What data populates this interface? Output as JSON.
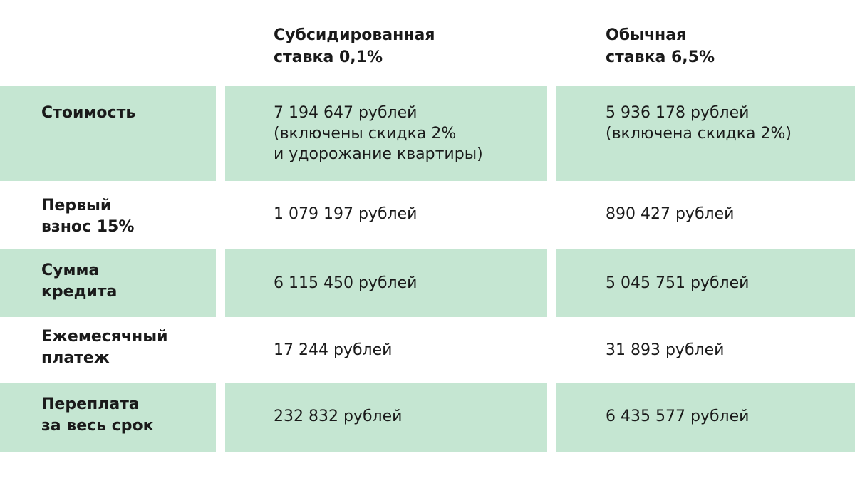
{
  "header": {
    "col1": "Субсидированная\nставка 0,1%",
    "col2": "Обычная\nставка 6,5%"
  },
  "rows": [
    {
      "label": "Стоимость",
      "subsidized": "7 194 647 рублей\n(включены скидка 2%\nи удорожание квартиры)",
      "regular": "5 936 178 рублей\n(включена скидка 2%)"
    },
    {
      "label": "Первый\nвзнос 15%",
      "subsidized": "1 079 197 рублей",
      "regular": "890 427 рублей"
    },
    {
      "label": "Сумма\nкредита",
      "subsidized": "6 115 450 рублей",
      "regular": "5 045 751 рублей"
    },
    {
      "label": "Ежемесячный\nплатеж",
      "subsidized": "17 244 рублей",
      "regular": "31 893  рублей"
    },
    {
      "label": "Переплата\nза весь срок",
      "subsidized": "232 832 рублей",
      "regular": "6 435 577 рублей"
    }
  ],
  "colors": {
    "shaded_row": "#c5e6d2",
    "text": "#1a1a1a"
  }
}
